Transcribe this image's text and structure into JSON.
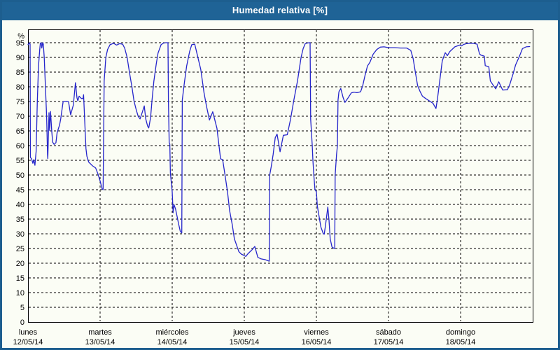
{
  "window": {
    "title": "Humedad relativa [%]"
  },
  "colors": {
    "titlebar_bg": "#1f6396",
    "frame_border": "#1d5e8f",
    "title_text": "#ffffff",
    "chart_bg": "#fbfdf5",
    "grid": "#000000",
    "axis_box": "#000000",
    "line": "#2525cb"
  },
  "chart_data": {
    "type": "line",
    "title": "Humedad relativa [%]",
    "ylabel": "%",
    "y_tick_min": 0,
    "y_tick_max": 95,
    "y_tick_step": 5,
    "ylim": [
      0,
      99.5
    ],
    "xlim_hours": [
      0,
      168
    ],
    "x_unit": "hours from lunes 12/05/14 00:00",
    "grid": "dashed",
    "legend_position": "none",
    "x_days": [
      {
        "name": "lunes",
        "date": "12/05/14"
      },
      {
        "name": "martes",
        "date": "13/05/14"
      },
      {
        "name": "miércoles",
        "date": "14/05/14"
      },
      {
        "name": "jueves",
        "date": "15/05/14"
      },
      {
        "name": "viernes",
        "date": "16/05/14"
      },
      {
        "name": "sábado",
        "date": "17/05/14"
      },
      {
        "name": "domingo",
        "date": "18/05/14"
      }
    ],
    "series": [
      {
        "name": "Humedad relativa [%]",
        "color": "#2525cb",
        "points": [
          [
            0,
            94.3
          ],
          [
            0.5,
            95
          ],
          [
            0.7,
            94.5
          ],
          [
            0.8,
            56
          ],
          [
            1.2,
            55.5
          ],
          [
            1.6,
            54
          ],
          [
            1.9,
            55.2
          ],
          [
            2.3,
            53.3
          ],
          [
            2.7,
            58
          ],
          [
            3.1,
            75
          ],
          [
            3.5,
            87
          ],
          [
            3.9,
            92.5
          ],
          [
            4.1,
            94.8
          ],
          [
            4.4,
            95
          ],
          [
            4.6,
            93.2
          ],
          [
            4.9,
            95
          ],
          [
            5.1,
            94.5
          ],
          [
            5.4,
            90
          ],
          [
            5.8,
            80
          ],
          [
            6.2,
            70
          ],
          [
            6.5,
            57
          ],
          [
            6.6,
            55.6
          ],
          [
            6.8,
            64
          ],
          [
            7,
            71.2
          ],
          [
            7.2,
            65.2
          ],
          [
            7.5,
            71.6
          ],
          [
            7.9,
            65
          ],
          [
            8.2,
            61.2
          ],
          [
            8.7,
            60.4
          ],
          [
            9.3,
            61
          ],
          [
            9.7,
            64.4
          ],
          [
            10.5,
            67
          ],
          [
            10.9,
            69.2
          ],
          [
            11.7,
            75
          ],
          [
            12.8,
            75.1
          ],
          [
            13.5,
            74.9
          ],
          [
            14.2,
            70.5
          ],
          [
            15.1,
            73.8
          ],
          [
            15.8,
            81.4
          ],
          [
            16.3,
            76.2
          ],
          [
            16.6,
            75.2
          ],
          [
            17,
            76.8
          ],
          [
            17.8,
            76
          ],
          [
            18.3,
            76
          ],
          [
            18.5,
            77.3
          ],
          [
            18.9,
            68
          ],
          [
            19.3,
            59
          ],
          [
            19.6,
            56.4
          ],
          [
            20.2,
            54.4
          ],
          [
            21.4,
            53.2
          ],
          [
            22.5,
            52.4
          ],
          [
            23.3,
            50.3
          ],
          [
            24,
            48
          ],
          [
            24.7,
            45.2
          ],
          [
            25,
            45
          ],
          [
            25.15,
            60
          ],
          [
            25.35,
            82
          ],
          [
            25.9,
            90
          ],
          [
            26.5,
            92.7
          ],
          [
            27.3,
            94.3
          ],
          [
            28.5,
            94.8
          ],
          [
            29.5,
            94.2
          ],
          [
            30.5,
            94.7
          ],
          [
            31.5,
            94.5
          ],
          [
            32.2,
            93.1
          ],
          [
            33,
            90
          ],
          [
            33.8,
            84.7
          ],
          [
            34.6,
            79.9
          ],
          [
            35.3,
            75.1
          ],
          [
            36.1,
            71.9
          ],
          [
            36.7,
            69.9
          ],
          [
            37.3,
            69.1
          ],
          [
            38.1,
            71.5
          ],
          [
            38.7,
            73.5
          ],
          [
            39.2,
            69.1
          ],
          [
            39.8,
            66.7
          ],
          [
            40.2,
            66
          ],
          [
            40.8,
            69.5
          ],
          [
            41.3,
            75.5
          ],
          [
            41.9,
            81.9
          ],
          [
            42.7,
            87.9
          ],
          [
            43.3,
            91.5
          ],
          [
            44.3,
            94.3
          ],
          [
            45,
            94.8
          ],
          [
            45.8,
            95
          ],
          [
            46.6,
            95
          ],
          [
            46.75,
            75.5
          ],
          [
            47,
            61
          ],
          [
            47.2,
            60.5
          ],
          [
            47.4,
            50.7
          ],
          [
            47.8,
            46.5
          ],
          [
            48,
            44.3
          ],
          [
            48.3,
            37.2
          ],
          [
            48.6,
            39.9
          ],
          [
            49.1,
            38.5
          ],
          [
            49.6,
            36
          ],
          [
            50.1,
            33.5
          ],
          [
            50.7,
            30.8
          ],
          [
            51.2,
            30.3
          ],
          [
            51.35,
            75.5
          ],
          [
            52,
            81
          ],
          [
            52.8,
            87
          ],
          [
            53.8,
            92
          ],
          [
            54.5,
            94.3
          ],
          [
            55.5,
            94.5
          ],
          [
            55.9,
            92.8
          ],
          [
            57.5,
            85.9
          ],
          [
            58.6,
            77.9
          ],
          [
            59.4,
            73.5
          ],
          [
            60.4,
            68.7
          ],
          [
            61.5,
            71.5
          ],
          [
            62.9,
            65.9
          ],
          [
            64.1,
            55.5
          ],
          [
            64.8,
            55.2
          ],
          [
            65.6,
            49.9
          ],
          [
            66.4,
            44.3
          ],
          [
            67.1,
            37.9
          ],
          [
            68,
            33.1
          ],
          [
            68.7,
            28.3
          ],
          [
            69.5,
            25.9
          ],
          [
            70.2,
            23.9
          ],
          [
            71,
            23.1
          ],
          [
            71.8,
            22.7
          ],
          [
            72.5,
            22.3
          ],
          [
            73.3,
            23.3
          ],
          [
            74.6,
            24.6
          ],
          [
            75.5,
            25.7
          ],
          [
            76.5,
            22
          ],
          [
            77.5,
            21.5
          ],
          [
            79,
            21.2
          ],
          [
            80.3,
            20.7
          ],
          [
            80.45,
            50
          ],
          [
            81,
            53
          ],
          [
            81.6,
            57
          ],
          [
            82.3,
            62.7
          ],
          [
            82.9,
            63.9
          ],
          [
            83.9,
            57.9
          ],
          [
            85,
            63.5
          ],
          [
            86.3,
            63.7
          ],
          [
            87.4,
            69
          ],
          [
            88.5,
            75.5
          ],
          [
            89.7,
            82
          ],
          [
            90.9,
            90
          ],
          [
            91.6,
            93
          ],
          [
            92.3,
            94.7
          ],
          [
            93.5,
            95
          ],
          [
            93.9,
            95
          ],
          [
            94.1,
            69
          ],
          [
            94.6,
            60.3
          ],
          [
            94.8,
            55.5
          ],
          [
            95.1,
            50.7
          ],
          [
            95.5,
            45.1
          ],
          [
            95.8,
            44.6
          ],
          [
            96,
            44.3
          ],
          [
            96.3,
            39.5
          ],
          [
            96.7,
            37.1
          ],
          [
            97.5,
            32.3
          ],
          [
            98.3,
            30
          ],
          [
            98.6,
            29.9
          ],
          [
            99,
            32.7
          ],
          [
            99.8,
            39.1
          ],
          [
            100.2,
            34.7
          ],
          [
            100.6,
            28.3
          ],
          [
            101.2,
            25.5
          ],
          [
            101.8,
            25.1
          ],
          [
            102.1,
            25
          ],
          [
            102.25,
            50
          ],
          [
            102.7,
            57
          ],
          [
            103,
            59.9
          ],
          [
            103.2,
            75.5
          ],
          [
            103.5,
            78.3
          ],
          [
            104.1,
            79.4
          ],
          [
            104.9,
            76.3
          ],
          [
            105.5,
            74.7
          ],
          [
            106.4,
            76
          ],
          [
            107.6,
            77.9
          ],
          [
            108.5,
            78.2
          ],
          [
            109.5,
            78
          ],
          [
            110.7,
            78.3
          ],
          [
            111.4,
            80.3
          ],
          [
            112.2,
            83.9
          ],
          [
            113,
            87.1
          ],
          [
            113.8,
            88.3
          ],
          [
            114.9,
            91.1
          ],
          [
            116.1,
            92.7
          ],
          [
            117.3,
            93.5
          ],
          [
            118.5,
            93.6
          ],
          [
            119.5,
            93.4
          ],
          [
            120.5,
            93.3
          ],
          [
            122,
            93.3
          ],
          [
            124,
            93.2
          ],
          [
            126,
            93.2
          ],
          [
            127.4,
            92.4
          ],
          [
            128.2,
            89.6
          ],
          [
            128.9,
            85.2
          ],
          [
            129.7,
            80.4
          ],
          [
            130.5,
            78.4
          ],
          [
            131.3,
            76.8
          ],
          [
            132.4,
            76
          ],
          [
            133.6,
            75.2
          ],
          [
            134.8,
            74.4
          ],
          [
            135.8,
            72.6
          ],
          [
            136.3,
            76
          ],
          [
            137.1,
            82.4
          ],
          [
            137.9,
            88.8
          ],
          [
            138.6,
            90.8
          ],
          [
            138.9,
            91.6
          ],
          [
            139.6,
            90.6
          ],
          [
            140.4,
            92
          ],
          [
            142.1,
            93.6
          ],
          [
            143.7,
            94.2
          ],
          [
            144.3,
            93.9
          ],
          [
            145,
            94.4
          ],
          [
            146,
            94.7
          ],
          [
            147,
            94.8
          ],
          [
            148.2,
            94.8
          ],
          [
            149.5,
            94.5
          ],
          [
            150.3,
            91.2
          ],
          [
            150.7,
            90.8
          ],
          [
            151.9,
            90.4
          ],
          [
            152.2,
            87.2
          ],
          [
            153.4,
            86.8
          ],
          [
            153.9,
            82
          ],
          [
            154.6,
            80.9
          ],
          [
            155.7,
            79.3
          ],
          [
            156.7,
            81.7
          ],
          [
            158,
            78.9
          ],
          [
            159.6,
            79
          ],
          [
            160.4,
            80.9
          ],
          [
            161.5,
            84.5
          ],
          [
            162.3,
            87.4
          ],
          [
            163.5,
            90.2
          ],
          [
            164.6,
            93
          ],
          [
            165.8,
            93.6
          ],
          [
            167,
            93.7
          ]
        ]
      }
    ]
  }
}
